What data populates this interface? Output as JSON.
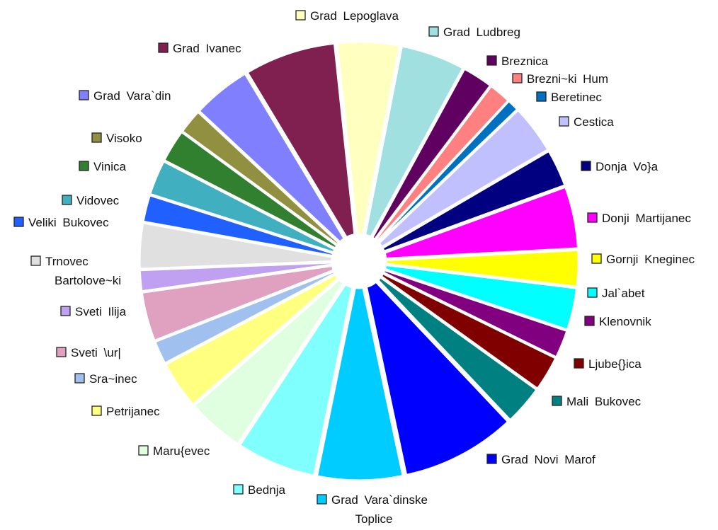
{
  "chart_data": {
    "type": "pie",
    "exploded": true,
    "legend": "labels beside slices",
    "series": [
      {
        "name": "Grad Lepoglava",
        "value": 5.3,
        "color": "#FFFFC0"
      },
      {
        "name": "Grad Ludbreg",
        "value": 5.5,
        "color": "#A0E0E0"
      },
      {
        "name": "Breznica",
        "value": 2.6,
        "color": "#600060"
      },
      {
        "name": "Brezni~ki Hum",
        "value": 1.9,
        "color": "#FF8080"
      },
      {
        "name": "Beretinec",
        "value": 1.0,
        "color": "#0070C0"
      },
      {
        "name": "Cestica",
        "value": 4.2,
        "color": "#C0C0FF"
      },
      {
        "name": "Donja Vo}a",
        "value": 3.2,
        "color": "#000080"
      },
      {
        "name": "Donji Martijanec",
        "value": 5.3,
        "color": "#FF00FF"
      },
      {
        "name": "Gornji Kneginec",
        "value": 3.1,
        "color": "#FFFF00"
      },
      {
        "name": "Jal`abet",
        "value": 3.6,
        "color": "#00FFFF"
      },
      {
        "name": "Klenovnik",
        "value": 2.4,
        "color": "#800080"
      },
      {
        "name": "Ljube{}ica",
        "value": 3.0,
        "color": "#800000"
      },
      {
        "name": "Mali Bukovec",
        "value": 3.4,
        "color": "#008080"
      },
      {
        "name": "Grad Novi Marof",
        "value": 9.8,
        "color": "#0000FF"
      },
      {
        "name": "Grad Vara`dinske Toplice",
        "value": 7.3,
        "color": "#00CCFF"
      },
      {
        "name": "Bednja",
        "value": 6.8,
        "color": "#80FFFF"
      },
      {
        "name": "Maru{evec",
        "value": 4.9,
        "color": "#E0FFE0"
      },
      {
        "name": "Petrijanec",
        "value": 4.1,
        "color": "#FFFF80"
      },
      {
        "name": "Sra~inec",
        "value": 2.0,
        "color": "#A0C0F0"
      },
      {
        "name": "Sveti \\ur|",
        "value": 4.2,
        "color": "#E0A0C0"
      },
      {
        "name": "Sveti Ilija",
        "value": 1.8,
        "color": "#C0A0F0"
      },
      {
        "name": "Trnovec Bartolove~ki",
        "value": 3.9,
        "color": "#E0E0E0"
      },
      {
        "name": "Veliki Bukovec",
        "value": 2.3,
        "color": "#2060FF"
      },
      {
        "name": "Vidovec",
        "value": 3.0,
        "color": "#40B0C0"
      },
      {
        "name": "Vinica",
        "value": 2.8,
        "color": "#308030"
      },
      {
        "name": "Visoko",
        "value": 2.1,
        "color": "#909040"
      },
      {
        "name": "Grad Vara`din",
        "value": 5.0,
        "color": "#8080FF"
      },
      {
        "name": "Grad Ivanec",
        "value": 7.8,
        "color": "#802050"
      }
    ]
  }
}
